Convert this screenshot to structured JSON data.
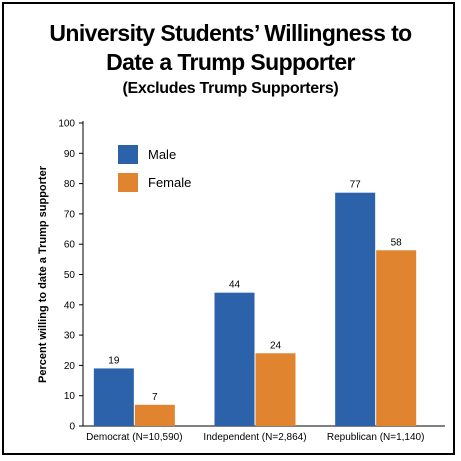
{
  "chart_data": {
    "type": "bar",
    "title": "University Students’ Willingness to Date a Trump Supporter",
    "title_line1": "University Students’ Willingness to",
    "title_line2": "Date a Trump Supporter",
    "subtitle": "(Excludes Trump Supporters)",
    "ylabel": "Percent willing to date a Trump supporter",
    "xlabel": "",
    "ylim": [
      0,
      100
    ],
    "yticks": [
      0,
      10,
      20,
      30,
      40,
      50,
      60,
      70,
      80,
      90,
      100
    ],
    "categories": [
      "Democrat (N=10,590)",
      "Independent (N=2,864)",
      "Republican (N=1,140)"
    ],
    "series": [
      {
        "name": "Male",
        "color": "#2b62a9",
        "values": [
          19,
          44,
          77
        ]
      },
      {
        "name": "Female",
        "color": "#e0842f",
        "values": [
          7,
          24,
          58
        ]
      }
    ],
    "legend": "top-left",
    "grid": false
  }
}
